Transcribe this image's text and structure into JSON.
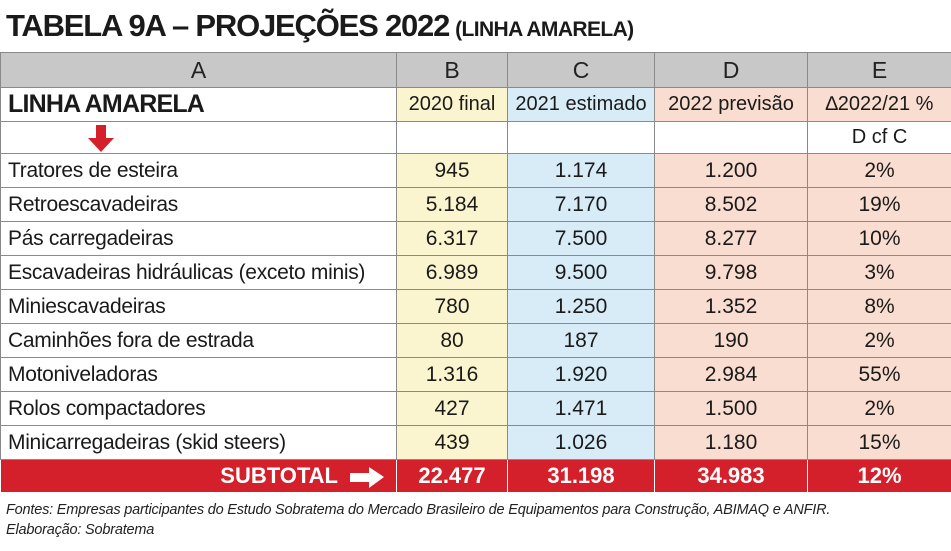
{
  "title": {
    "main": "TABELA 9A – PROJEÇÕES 2022",
    "sub": "(LINHA AMARELA)"
  },
  "columns": {
    "letters": [
      "A",
      "B",
      "C",
      "D",
      "E"
    ],
    "section_label": "LINHA AMARELA",
    "headers": [
      "2020 final",
      "2021 estimado",
      "2022 previsão",
      "∆2022/21 %"
    ],
    "note": "D cf C"
  },
  "rows": [
    {
      "label": "Tratores de esteira",
      "b": "945",
      "c": "1.174",
      "d": "1.200",
      "e": "2%"
    },
    {
      "label": "Retroescavadeiras",
      "b": "5.184",
      "c": "7.170",
      "d": "8.502",
      "e": "19%"
    },
    {
      "label": "Pás carregadeiras",
      "b": "6.317",
      "c": "7.500",
      "d": "8.277",
      "e": "10%"
    },
    {
      "label": "Escavadeiras hidráulicas (exceto minis)",
      "b": "6.989",
      "c": "9.500",
      "d": "9.798",
      "e": "3%"
    },
    {
      "label": "Miniescavadeiras",
      "b": "780",
      "c": "1.250",
      "d": "1.352",
      "e": "8%"
    },
    {
      "label": "Caminhões fora de estrada",
      "b": "80",
      "c": "187",
      "d": "190",
      "e": "2%"
    },
    {
      "label": "Motoniveladoras",
      "b": "1.316",
      "c": "1.920",
      "d": "2.984",
      "e": "55%"
    },
    {
      "label": "Rolos compactadores",
      "b": "427",
      "c": "1.471",
      "d": "1.500",
      "e": "2%"
    },
    {
      "label": "Minicarregadeiras (skid steers)",
      "b": "439",
      "c": "1.026",
      "d": "1.180",
      "e": "15%"
    }
  ],
  "subtotal": {
    "label": "SUBTOTAL",
    "b": "22.477",
    "c": "31.198",
    "d": "34.983",
    "e": "12%"
  },
  "footer": {
    "sources": "Fontes: Empresas participantes do Estudo Sobratema do Mercado Brasileiro de Equipamentos para Construção, ABIMAQ e ANFIR.",
    "elaboration": "Elaboração: Sobratema"
  },
  "colors": {
    "header_gray": "#c8c8c8",
    "col_b": "#fbf5cf",
    "col_c": "#d8ecf8",
    "col_d": "#f9ddd0",
    "subtotal_red": "#d3202a"
  },
  "icons": {
    "down_arrow": "arrow-down-icon",
    "right_arrow": "arrow-right-icon"
  }
}
